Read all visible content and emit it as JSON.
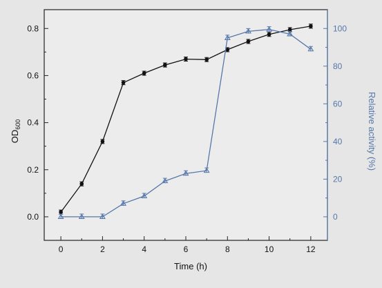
{
  "chart_data": {
    "type": "line",
    "xlabel": "Time (h)",
    "ylabel_left": "OD600",
    "ylabel_left_main": "OD",
    "ylabel_left_sub": "600",
    "ylabel_right": "Relative activity (%)",
    "xlim": [
      -0.8,
      12.8
    ],
    "ylim_left": [
      -0.1,
      0.88
    ],
    "ylim_right": [
      -12.5,
      110
    ],
    "x_ticks": [
      0,
      2,
      4,
      6,
      8,
      10,
      12
    ],
    "x_tick_labels": [
      "0",
      "2",
      "4",
      "6",
      "8",
      "10",
      "12"
    ],
    "y_left_ticks": [
      0.0,
      0.2,
      0.4,
      0.6,
      0.8
    ],
    "y_left_tick_labels": [
      "0.0",
      "0.2",
      "0.4",
      "0.6",
      "0.8"
    ],
    "y_right_ticks": [
      0,
      20,
      40,
      60,
      80,
      100
    ],
    "y_right_tick_labels": [
      "0",
      "20",
      "40",
      "60",
      "80",
      "100"
    ],
    "grid": false,
    "series": [
      {
        "axis": "left",
        "marker": "filled-circle",
        "color": "#111111",
        "x": [
          0,
          1,
          2,
          3,
          4,
          5,
          6,
          7,
          8,
          9,
          10,
          11,
          12
        ],
        "y": [
          0.02,
          0.14,
          0.32,
          0.57,
          0.61,
          0.645,
          0.67,
          0.668,
          0.71,
          0.745,
          0.775,
          0.795,
          0.81
        ]
      },
      {
        "axis": "right",
        "marker": "open-triangle",
        "color": "#5577aa",
        "x": [
          0,
          1,
          2,
          3,
          4,
          5,
          6,
          7,
          8,
          9,
          10,
          11,
          12
        ],
        "y": [
          0,
          0,
          0,
          7,
          11,
          19,
          23,
          24.5,
          95,
          98.5,
          99.5,
          97,
          89
        ]
      }
    ]
  }
}
